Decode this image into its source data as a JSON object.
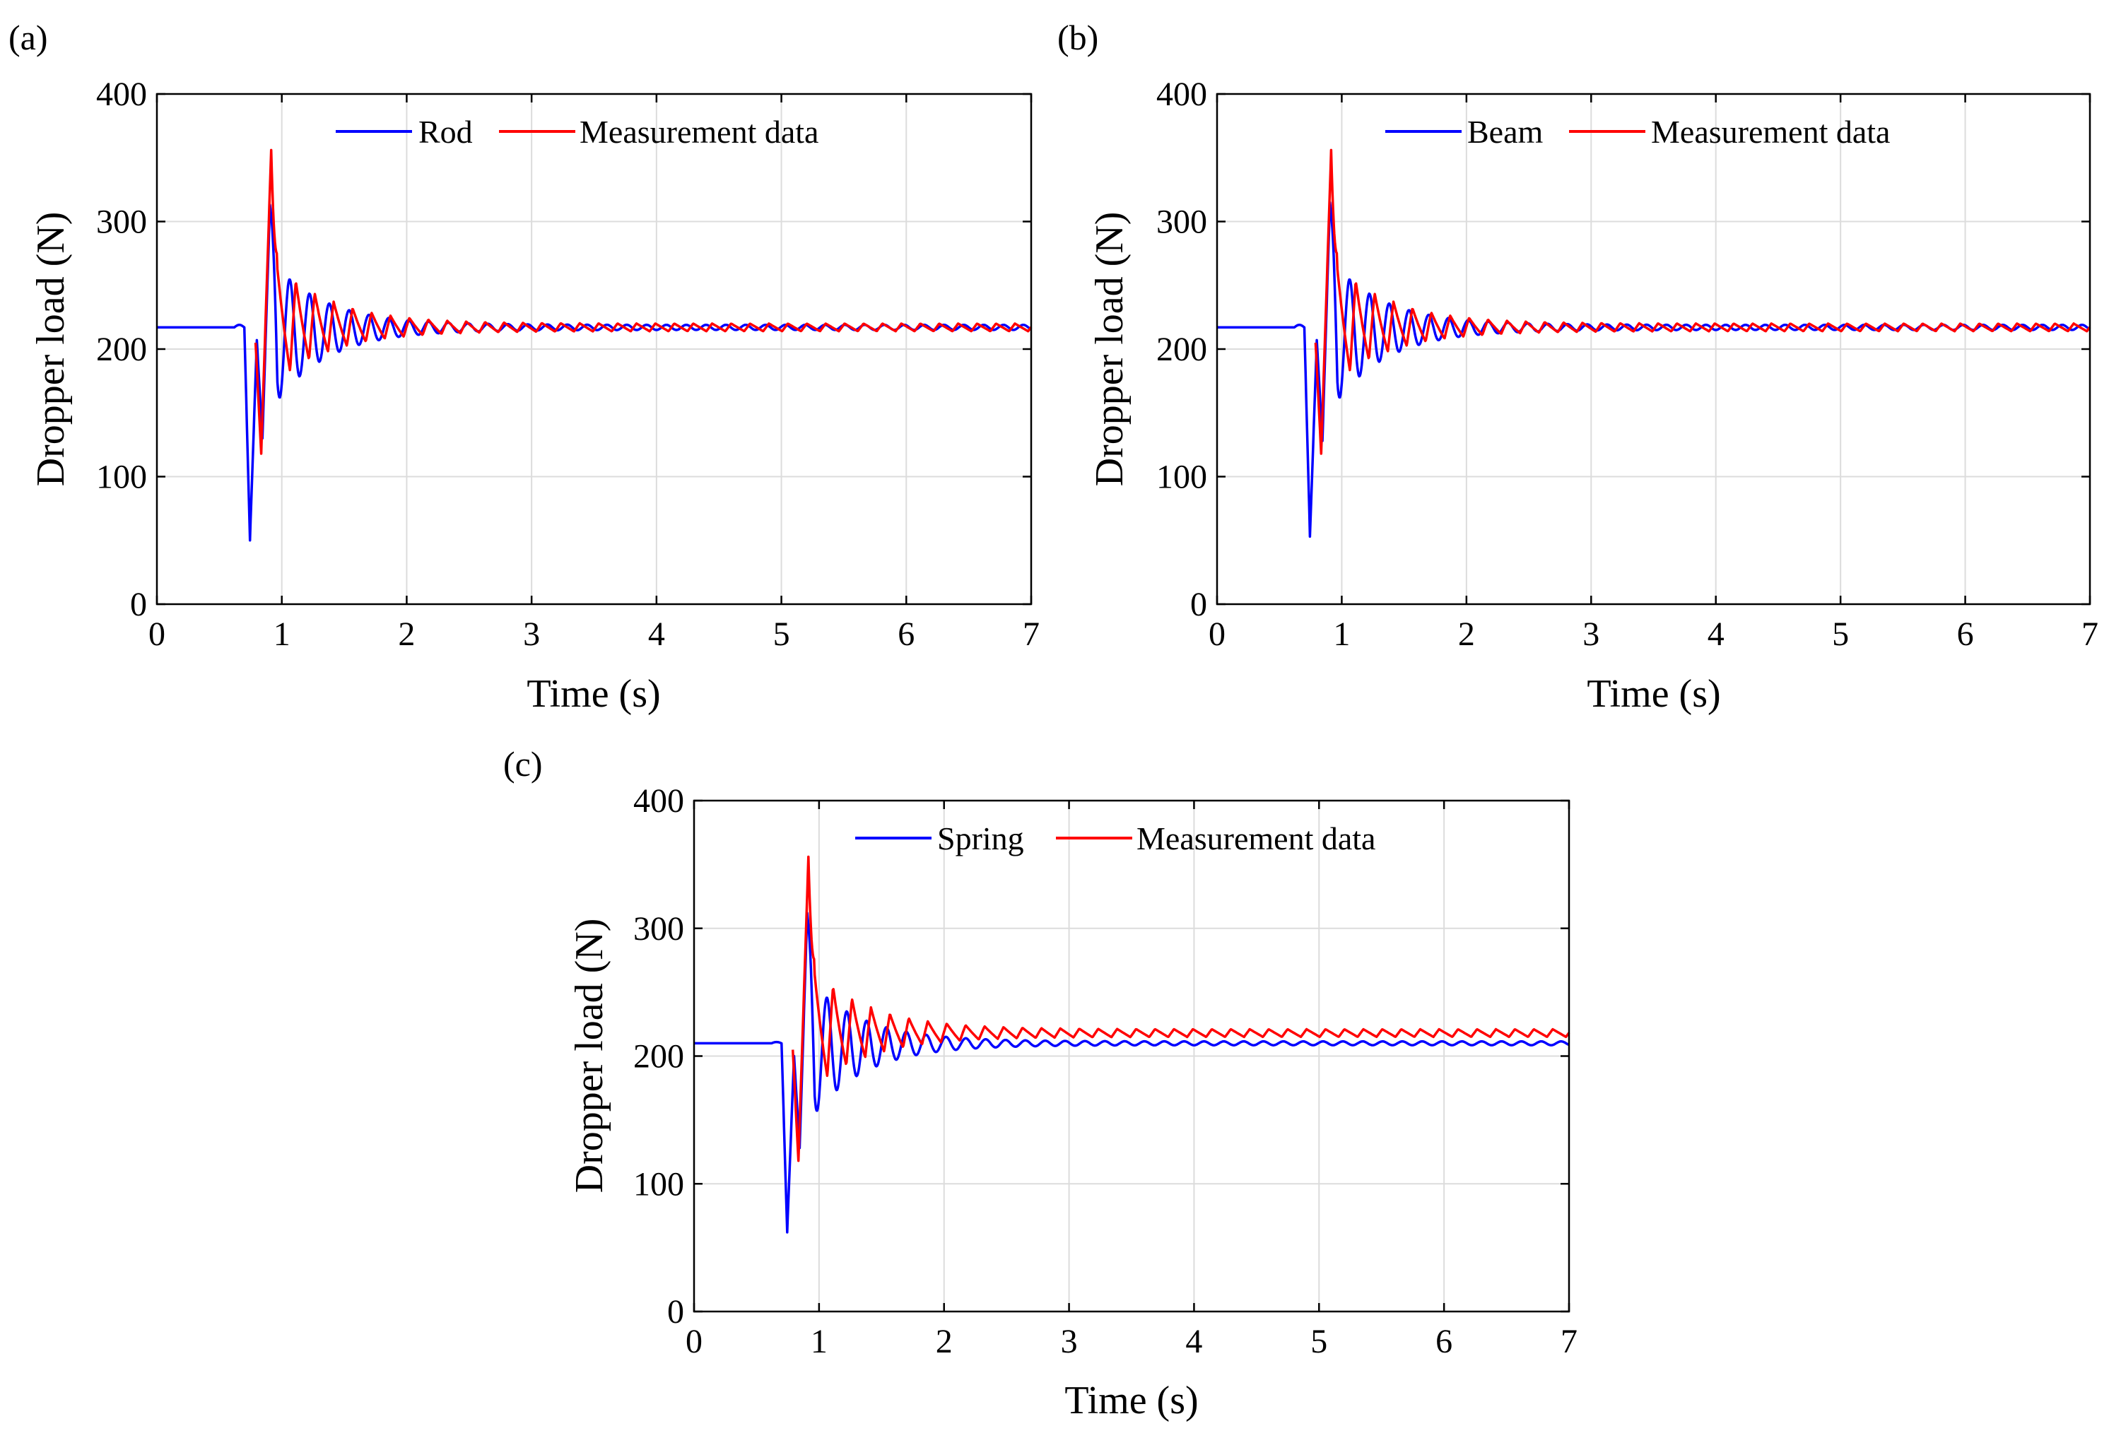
{
  "colors": {
    "model": "#0000ff",
    "measurement": "#ff0000",
    "grid": "#dcdcdc",
    "axis": "#000000"
  },
  "chart_data": [
    {
      "panel": "(a)",
      "type": "line",
      "title": "",
      "xlabel": "Time (s)",
      "ylabel": "Dropper load (N)",
      "xlim": [
        0,
        7
      ],
      "ylim": [
        0,
        400
      ],
      "xticks": [
        0,
        1,
        2,
        3,
        4,
        5,
        6,
        7
      ],
      "yticks": [
        0,
        100,
        200,
        300,
        400
      ],
      "grid": true,
      "legend": "top-center, horizontal",
      "series": [
        {
          "name": "Rod",
          "color": "#0000ff",
          "role": "model",
          "static": 217,
          "pre_bump": 219,
          "dip1": 50,
          "mini": 207,
          "dip2": 130,
          "peak": 313,
          "osc_amp": 58,
          "end_amp": 2
        },
        {
          "name": "Measurement data",
          "color": "#ff0000",
          "role": "measurement",
          "static": 217,
          "dip1": 118,
          "peak": 356,
          "osc_amp": 48,
          "end_amp": 3
        }
      ]
    },
    {
      "panel": "(b)",
      "type": "line",
      "title": "",
      "xlabel": "Time (s)",
      "ylabel": "Dropper load (N)",
      "xlim": [
        0,
        7
      ],
      "ylim": [
        0,
        400
      ],
      "xticks": [
        0,
        1,
        2,
        3,
        4,
        5,
        6,
        7
      ],
      "yticks": [
        0,
        100,
        200,
        300,
        400
      ],
      "grid": true,
      "legend": "top-center, horizontal",
      "series": [
        {
          "name": "Beam",
          "color": "#0000ff",
          "role": "model",
          "static": 217,
          "pre_bump": 219,
          "dip1": 53,
          "mini": 207,
          "dip2": 128,
          "peak": 315,
          "osc_amp": 58,
          "end_amp": 2
        },
        {
          "name": "Measurement data",
          "color": "#ff0000",
          "role": "measurement",
          "static": 217,
          "dip1": 118,
          "peak": 356,
          "osc_amp": 48,
          "end_amp": 3
        }
      ]
    },
    {
      "panel": "(c)",
      "type": "line",
      "title": "",
      "xlabel": "Time (s)",
      "ylabel": "Dropper load (N)",
      "xlim": [
        0,
        7
      ],
      "ylim": [
        0,
        400
      ],
      "xticks": [
        0,
        1,
        2,
        3,
        4,
        5,
        6,
        7
      ],
      "yticks": [
        0,
        100,
        200,
        300,
        400
      ],
      "grid": true,
      "legend": "top-center, horizontal",
      "series": [
        {
          "name": "Spring",
          "color": "#0000ff",
          "role": "model",
          "static": 210,
          "pre_bump": 211,
          "dip1": 62,
          "mini": 200,
          "dip2": 128,
          "peak": 312,
          "osc_amp": 56,
          "end_amp": 1.5
        },
        {
          "name": "Measurement data",
          "color": "#ff0000",
          "role": "measurement",
          "static": 218,
          "dip1": 118,
          "peak": 356,
          "osc_amp": 48,
          "end_amp": 3
        }
      ]
    }
  ]
}
